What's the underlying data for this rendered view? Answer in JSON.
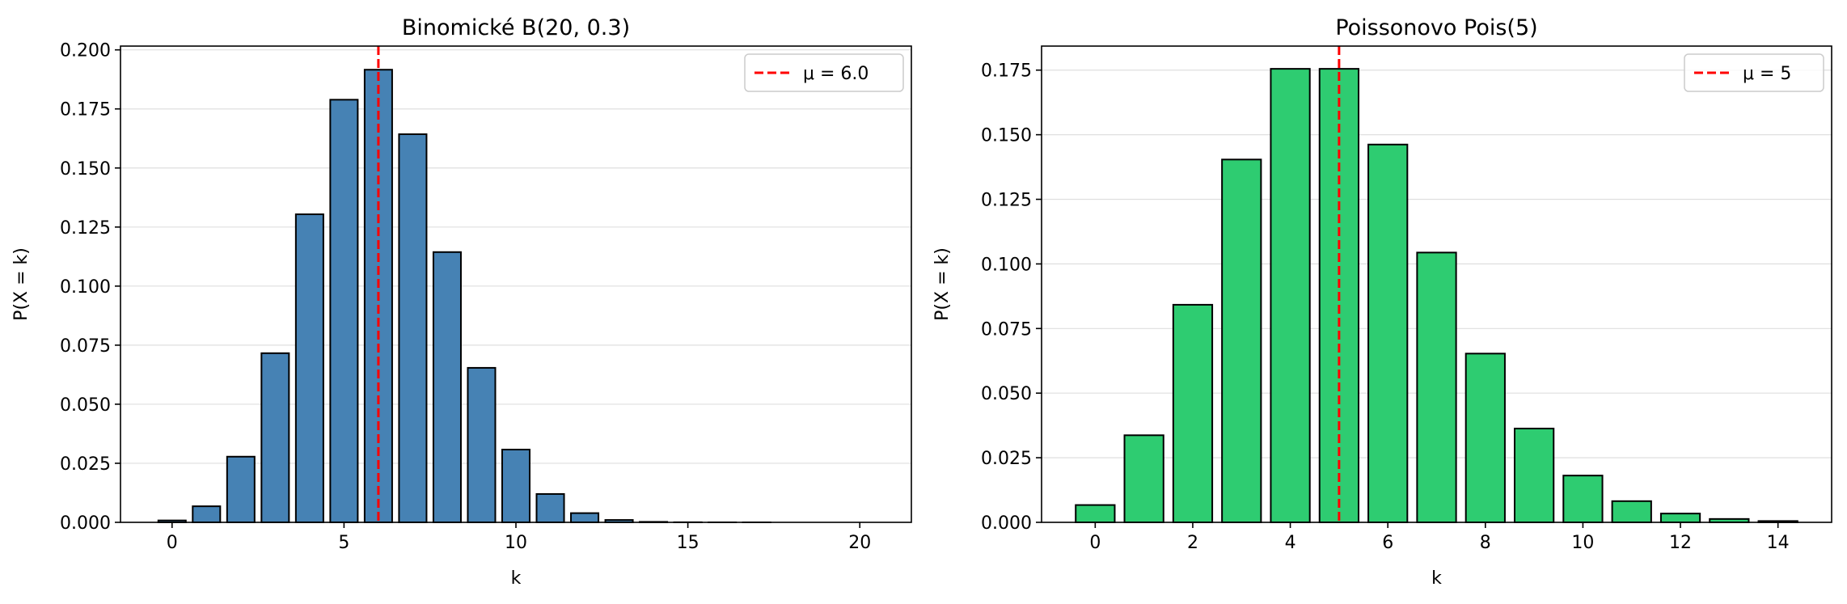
{
  "chart_data": [
    {
      "type": "bar",
      "title": "Binomické B(20, 0.3)",
      "xlabel": "k",
      "ylabel": "P(X = k)",
      "x": [
        0,
        1,
        2,
        3,
        4,
        5,
        6,
        7,
        8,
        9,
        10,
        11,
        12,
        13,
        14,
        15,
        16,
        17,
        18,
        19,
        20
      ],
      "values": [
        0.0008,
        0.0068,
        0.0278,
        0.0716,
        0.1304,
        0.1789,
        0.1916,
        0.1643,
        0.1144,
        0.0654,
        0.0308,
        0.012,
        0.0039,
        0.001,
        0.0002,
        4e-05,
        5e-06,
        5e-07,
        0.0,
        0.0,
        0.0
      ],
      "xlim": [
        -1.5,
        21.5
      ],
      "ylim": [
        0,
        0.2016
      ],
      "xticks": [
        0,
        5,
        10,
        15,
        20
      ],
      "yticks": [
        "0.000",
        "0.025",
        "0.050",
        "0.075",
        "0.100",
        "0.125",
        "0.150",
        "0.175",
        "0.200"
      ],
      "bar_color": "#4682b4",
      "mean_line": {
        "x": 6.0,
        "label": "μ = 6.0",
        "color": "#ff0000"
      },
      "legend_position": "top-right",
      "grid": "y"
    },
    {
      "type": "bar",
      "title": "Poissonovo Pois(5)",
      "xlabel": "k",
      "ylabel": "P(X = k)",
      "x": [
        0,
        1,
        2,
        3,
        4,
        5,
        6,
        7,
        8,
        9,
        10,
        11,
        12,
        13,
        14
      ],
      "values": [
        0.0067,
        0.0337,
        0.0842,
        0.1404,
        0.1755,
        0.1755,
        0.1462,
        0.1044,
        0.0653,
        0.0363,
        0.0181,
        0.0082,
        0.0034,
        0.0013,
        0.0005
      ],
      "xlim": [
        -1.1,
        15.1
      ],
      "ylim": [
        0,
        0.1843
      ],
      "xticks": [
        0,
        2,
        4,
        6,
        8,
        10,
        12,
        14
      ],
      "yticks": [
        "0.000",
        "0.025",
        "0.050",
        "0.075",
        "0.100",
        "0.125",
        "0.150",
        "0.175"
      ],
      "bar_color": "#2ecc71",
      "mean_line": {
        "x": 5,
        "label": "μ = 5",
        "color": "#ff0000"
      },
      "legend_position": "top-right",
      "grid": "y"
    }
  ]
}
